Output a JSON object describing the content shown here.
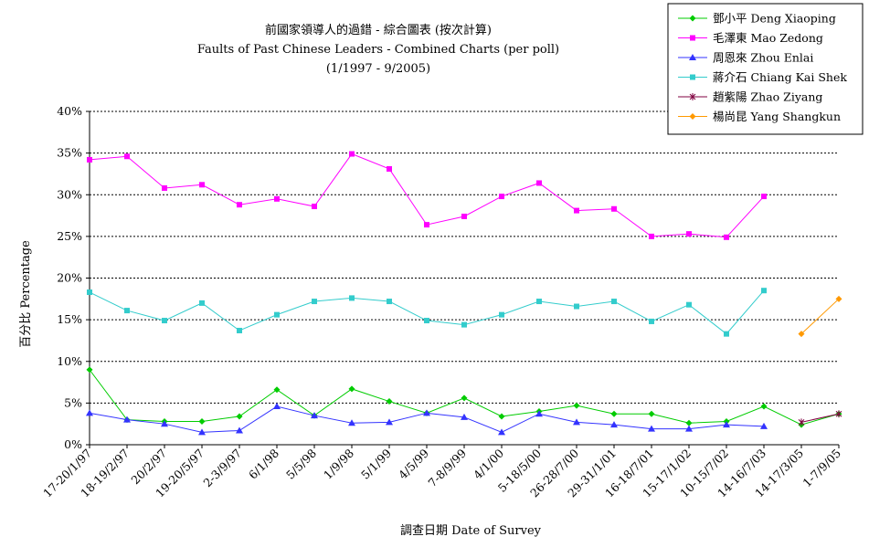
{
  "chart_data": {
    "type": "line",
    "title": "前國家領導人的過錯 - 綜合圖表 (按次計算)",
    "subtitle": "Faults of Past Chinese Leaders - Combined Charts (per poll)",
    "date_range": "(1/1997 - 9/2005)",
    "xlabel": "調查日期 Date of Survey",
    "ylabel": "百分比 Percentage",
    "ylim": [
      0,
      40
    ],
    "yticks": [
      "0%",
      "5%",
      "10%",
      "15%",
      "20%",
      "25%",
      "30%",
      "35%",
      "40%"
    ],
    "grid": "horizontal-dashed",
    "legend_position": "top-right",
    "categories": [
      "17-20/1/97",
      "18-19/2/97",
      "20/2/97",
      "19-20/5/97",
      "2-3/9/97",
      "6/1/98",
      "5/5/98",
      "1/9/98",
      "5/1/99",
      "4/5/99",
      "7-8/9/99",
      "4/1/00",
      "5-18/5/00",
      "26-28/7/00",
      "29-31/1/01",
      "16-18/7/01",
      "15-17/1/02",
      "10-15/7/02",
      "14-16/7/03",
      "14-17/3/05",
      "1-7/9/05"
    ],
    "series": [
      {
        "name": "鄧小平 Deng Xiaoping",
        "color": "#00cc00",
        "marker": "diamond",
        "values": [
          9.0,
          3.0,
          2.8,
          2.8,
          3.4,
          6.6,
          3.5,
          6.7,
          5.2,
          3.8,
          5.6,
          3.4,
          4.0,
          4.7,
          3.7,
          3.7,
          2.6,
          2.8,
          4.6,
          2.4,
          3.7
        ]
      },
      {
        "name": "毛澤東 Mao Zedong",
        "color": "#ff00ff",
        "marker": "square",
        "values": [
          34.2,
          34.6,
          30.8,
          31.2,
          28.8,
          29.5,
          28.6,
          34.9,
          33.1,
          26.4,
          27.4,
          29.8,
          31.4,
          28.1,
          28.3,
          25.0,
          25.3,
          24.9,
          29.8,
          null,
          null
        ]
      },
      {
        "name": "周恩來 Zhou Enlai",
        "color": "#3333ff",
        "marker": "triangle",
        "values": [
          3.8,
          3.0,
          2.5,
          1.5,
          1.7,
          4.6,
          3.5,
          2.6,
          2.7,
          3.8,
          3.3,
          1.5,
          3.7,
          2.7,
          2.4,
          1.9,
          1.9,
          2.4,
          2.2,
          null,
          null
        ]
      },
      {
        "name": "蔣介石 Chiang Kai Shek",
        "color": "#33cccc",
        "marker": "square",
        "values": [
          18.3,
          16.1,
          14.9,
          17.0,
          13.7,
          15.6,
          17.2,
          17.6,
          17.2,
          14.9,
          14.4,
          15.6,
          17.2,
          16.6,
          17.2,
          14.8,
          16.8,
          13.3,
          18.5,
          null,
          null
        ]
      },
      {
        "name": "趙紫陽 Zhao Ziyang",
        "color": "#800040",
        "marker": "star",
        "values": [
          null,
          null,
          null,
          null,
          null,
          null,
          null,
          null,
          null,
          null,
          null,
          null,
          null,
          null,
          null,
          null,
          null,
          null,
          null,
          2.7,
          3.7
        ]
      },
      {
        "name": "楊尚昆 Yang Shangkun",
        "color": "#ff9900",
        "marker": "diamond",
        "values": [
          null,
          null,
          null,
          null,
          null,
          null,
          null,
          null,
          null,
          null,
          null,
          null,
          null,
          null,
          null,
          null,
          null,
          null,
          null,
          13.3,
          17.5
        ]
      }
    ]
  }
}
